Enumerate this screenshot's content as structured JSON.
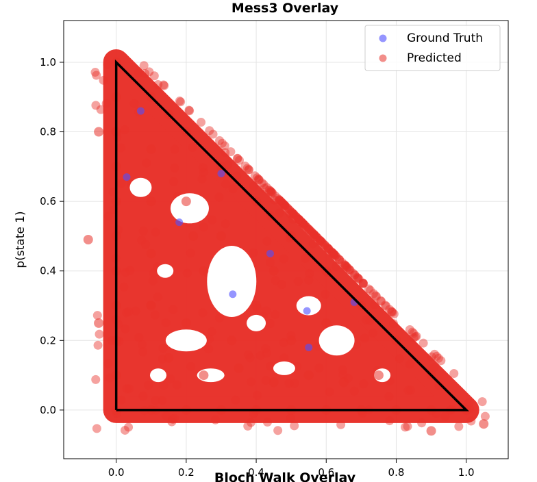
{
  "chart_data": {
    "type": "scatter",
    "title": "Mess3 Overlay",
    "next_title": "Bloch Walk Overlay",
    "xlabel": "",
    "ylabel": "p(state 1)",
    "xlim": [
      -0.15,
      1.12
    ],
    "ylim": [
      -0.14,
      1.12
    ],
    "xticks": [
      "0.0",
      "0.2",
      "0.4",
      "0.6",
      "0.8",
      "1.0"
    ],
    "yticks": [
      "0.0",
      "0.2",
      "0.4",
      "0.6",
      "0.8",
      "1.0"
    ],
    "grid": true,
    "legend_position": "top-right",
    "legend": [
      "Ground Truth",
      "Predicted"
    ],
    "simplex": [
      [
        0,
        0
      ],
      [
        1,
        0
      ],
      [
        0,
        1
      ],
      [
        0,
        0
      ]
    ],
    "series": [
      {
        "name": "Ground Truth",
        "color": "#4f4fff",
        "points": [
          [
            0.333,
            0.333
          ],
          [
            0.07,
            0.86
          ],
          [
            0.03,
            0.67
          ],
          [
            0.18,
            0.54
          ],
          [
            0.3,
            0.68
          ],
          [
            0.44,
            0.45
          ],
          [
            0.545,
            0.285
          ],
          [
            0.68,
            0.31
          ],
          [
            0.55,
            0.18
          ]
        ]
      },
      {
        "name": "Predicted",
        "color": "#e8312a",
        "points": [
          [
            0.0,
            0.0
          ],
          [
            0.1,
            0.0
          ],
          [
            0.2,
            0.0
          ],
          [
            0.3,
            0.0
          ],
          [
            0.4,
            0.0
          ],
          [
            0.5,
            0.0
          ],
          [
            0.6,
            0.0
          ],
          [
            0.7,
            0.0
          ],
          [
            0.8,
            0.0
          ],
          [
            0.9,
            0.0
          ],
          [
            1.0,
            0.0
          ],
          [
            0.0,
            0.1
          ],
          [
            0.0,
            0.2
          ],
          [
            0.0,
            0.3
          ],
          [
            0.0,
            0.4
          ],
          [
            0.0,
            0.5
          ],
          [
            0.0,
            0.6
          ],
          [
            0.0,
            0.7
          ],
          [
            0.0,
            0.8
          ],
          [
            0.0,
            0.9
          ],
          [
            0.0,
            1.0
          ],
          [
            0.1,
            0.9
          ],
          [
            0.2,
            0.8
          ],
          [
            0.3,
            0.7
          ],
          [
            0.4,
            0.6
          ],
          [
            0.5,
            0.5
          ],
          [
            0.6,
            0.4
          ],
          [
            0.7,
            0.3
          ],
          [
            0.8,
            0.2
          ],
          [
            0.9,
            0.1
          ],
          [
            0.15,
            0.15
          ],
          [
            0.25,
            0.1
          ],
          [
            0.35,
            0.12
          ],
          [
            0.45,
            0.08
          ],
          [
            0.55,
            0.1
          ],
          [
            0.65,
            0.08
          ],
          [
            0.75,
            0.1
          ],
          [
            0.1,
            0.3
          ],
          [
            0.1,
            0.45
          ],
          [
            0.1,
            0.6
          ],
          [
            0.1,
            0.75
          ],
          [
            0.2,
            0.6
          ],
          [
            0.3,
            0.5
          ],
          [
            0.4,
            0.3
          ],
          [
            0.5,
            0.2
          ],
          [
            0.2,
            0.25
          ],
          [
            0.25,
            0.4
          ],
          [
            0.45,
            0.4
          ],
          [
            0.33,
            0.2
          ],
          [
            0.6,
            0.25
          ],
          [
            0.22,
            0.5
          ],
          [
            0.15,
            0.85
          ],
          [
            -0.08,
            0.49
          ],
          [
            -0.05,
            0.25
          ],
          [
            -0.05,
            0.8
          ],
          [
            1.05,
            -0.04
          ],
          [
            0.9,
            -0.06
          ]
        ]
      }
    ]
  }
}
